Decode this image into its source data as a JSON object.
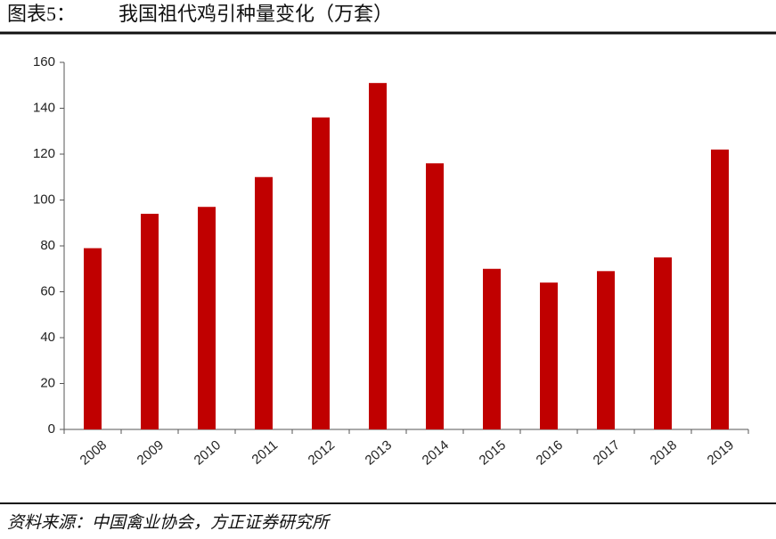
{
  "chart_data": {
    "type": "bar",
    "figure_label": "图表5：",
    "title": "我国祖代鸡引种量变化（万套）",
    "source": "资料来源：中国禽业协会，方正证券研究所",
    "categories": [
      "2008",
      "2009",
      "2010",
      "2011",
      "2012",
      "2013",
      "2014",
      "2015",
      "2016",
      "2017",
      "2018",
      "2019"
    ],
    "values": [
      79,
      94,
      97,
      110,
      136,
      151,
      116,
      70,
      64,
      69,
      75,
      122
    ],
    "color": "#c00000",
    "ylim": [
      0,
      160
    ],
    "yticks": [
      0,
      20,
      40,
      60,
      80,
      100,
      120,
      140,
      160
    ],
    "grid": false
  }
}
